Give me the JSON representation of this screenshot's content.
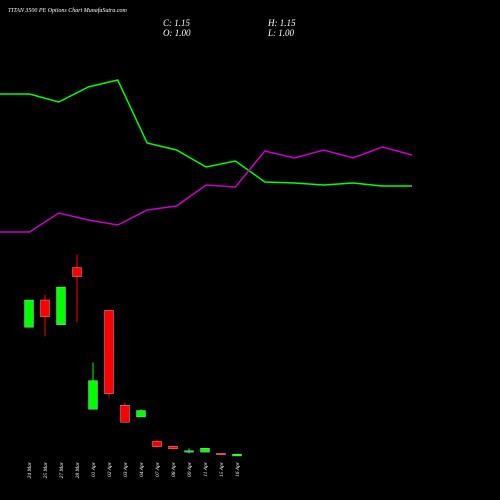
{
  "chart_data": [
    {
      "type": "line",
      "categories": [
        null,
        null,
        null,
        null,
        null,
        null,
        null,
        null,
        null,
        null,
        null,
        null,
        null,
        null,
        null
      ],
      "ylim": [
        0,
        100
      ],
      "series": [
        {
          "color": "#00ff00",
          "values": [
            78,
            78,
            74,
            81.5,
            85,
            53.5,
            50,
            41.5,
            44.5,
            34,
            33.5,
            32.5,
            33.5,
            32,
            32
          ]
        },
        {
          "color": "#cc00cc",
          "values": [
            9,
            9,
            18.5,
            15,
            12.5,
            20,
            22,
            32.5,
            31.5,
            49.5,
            46,
            50,
            46,
            51.5,
            47.5
          ]
        }
      ]
    },
    {
      "type": "candlestick",
      "title": "TITAN 3500 PE Options Chart MunafaSutra.com",
      "info": [
        "C: 1.15",
        "H: 1.15",
        "O: 1.00",
        "L: 1.00"
      ],
      "categories": [
        "24 Mar",
        "25 Mar",
        "27 Mar",
        "28 Mar",
        "01 Apr",
        "02 Apr",
        "03 Apr",
        "04 Apr",
        "07 Apr",
        "08 Apr",
        "09 Apr",
        "11 Apr",
        "15 Apr",
        "16 Apr"
      ],
      "ylim": [
        0,
        18
      ],
      "up_color": "#00ff00",
      "down_color": "#ff0000",
      "open": [
        10.9,
        13.0,
        11.1,
        15.5,
        4.6,
        12.2,
        4.9,
        4.0,
        2.15,
        1.75,
        1.3,
        1.3,
        1.2,
        1.0
      ],
      "high": [
        13.0,
        13.4,
        14.0,
        16.5,
        8.2,
        12.2,
        5.1,
        4.6,
        2.2,
        1.8,
        1.6,
        1.6,
        1.2,
        1.15
      ],
      "low": [
        10.9,
        10.2,
        11.1,
        11.3,
        4.6,
        5.5,
        3.6,
        4.0,
        1.7,
        1.5,
        1.2,
        1.3,
        1.05,
        1.0
      ],
      "close": [
        13.0,
        11.7,
        14.0,
        14.8,
        6.8,
        5.8,
        3.6,
        4.5,
        1.7,
        1.55,
        1.4,
        1.6,
        1.1,
        1.15
      ]
    }
  ]
}
